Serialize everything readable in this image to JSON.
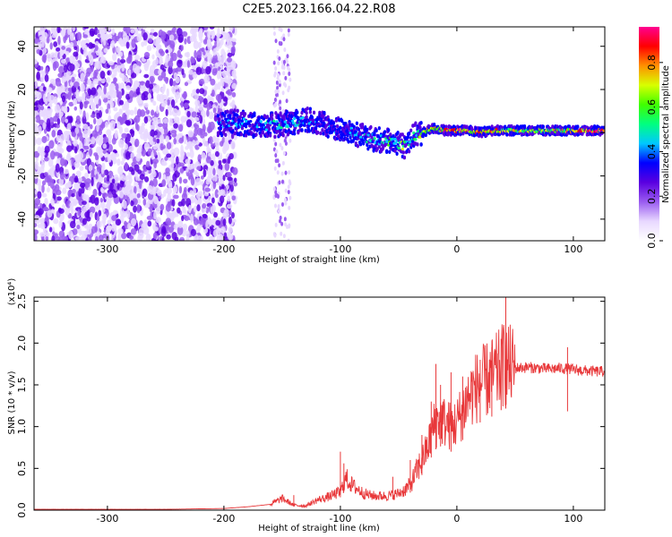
{
  "title": "C2E5.2023.166.04.22.R08",
  "colors": {
    "snr_line": "#e8383a",
    "colormap": [
      "#ffffff",
      "#e8d8ff",
      "#9a5cf0",
      "#5a00e0",
      "#0000ff",
      "#00c8ff",
      "#00ff80",
      "#40ff00",
      "#d8ff00",
      "#ff9000",
      "#ff0000",
      "#ff0090"
    ]
  },
  "chart_data": [
    {
      "type": "heatmap",
      "name": "spectrogram",
      "xlabel": "Height of straight line (km)",
      "ylabel": "Frequency (Hz)",
      "xlim": [
        -363,
        127
      ],
      "ylim": [
        -50,
        49
      ],
      "xticks": [
        -300,
        -200,
        -100,
        0,
        100
      ],
      "xticklabels": [
        "-300",
        "-200",
        "-100",
        "0",
        "100"
      ],
      "yticks": [
        40,
        20,
        0,
        -20,
        -40
      ],
      "yticklabels": [
        "40",
        "20",
        "0",
        "-20",
        "-40"
      ],
      "colorbar": {
        "label": "Normalized spectral amplitude",
        "range": [
          0,
          0.96
        ],
        "ticks": [
          0.0,
          0.2,
          0.4,
          0.6,
          0.8
        ],
        "ticklabels": [
          "0.0",
          "0.2",
          "0.4",
          "0.6",
          "0.8"
        ]
      },
      "ridge": {
        "x": [
          -205,
          -190,
          -170,
          -150,
          -140,
          -130,
          -120,
          -110,
          -100,
          -90,
          -80,
          -70,
          -60,
          -50,
          -45,
          -40,
          -35,
          -30,
          -25,
          -20,
          -10,
          0,
          10,
          20,
          30,
          40,
          60,
          80,
          100,
          127
        ],
        "freq": [
          4,
          5,
          3,
          4,
          5,
          6,
          5,
          3,
          1,
          0,
          -2,
          -3,
          -4,
          -5,
          -6,
          -3,
          -1,
          0,
          1,
          2,
          1,
          1,
          1,
          0,
          1,
          1,
          1,
          1,
          1,
          1
        ],
        "amplitude": [
          0.35,
          0.4,
          0.38,
          0.45,
          0.42,
          0.4,
          0.38,
          0.35,
          0.35,
          0.4,
          0.42,
          0.45,
          0.5,
          0.55,
          0.6,
          0.5,
          0.55,
          0.6,
          0.65,
          0.7,
          0.8,
          0.85,
          0.82,
          0.8,
          0.75,
          0.7,
          0.65,
          0.65,
          0.68,
          0.95
        ]
      },
      "noise_region_x": [
        -363,
        -200
      ]
    },
    {
      "type": "line",
      "name": "snr",
      "xlabel": "Height of straight line (km)",
      "ylabel": "SNR (10 * v/v)",
      "y_multiplier": "(x10⁴)",
      "xlim": [
        -363,
        127
      ],
      "ylim": [
        0,
        2.55
      ],
      "xticks": [
        -300,
        -200,
        -100,
        0,
        100
      ],
      "xticklabels": [
        "-300",
        "-200",
        "-100",
        "0",
        "100"
      ],
      "yticks": [
        0.0,
        0.5,
        1.0,
        1.5,
        2.0,
        2.5
      ],
      "yticklabels": [
        "0.0",
        "0.5",
        "1.0",
        "1.5",
        "2.0",
        "2.5"
      ],
      "series": [
        {
          "x": [
            -363,
            -300,
            -250,
            -200,
            -180,
            -160,
            -150,
            -140,
            -130,
            -120,
            -110,
            -100,
            -95,
            -90,
            -85,
            -80,
            -75,
            -70,
            -60,
            -50,
            -45,
            -40,
            -35,
            -30,
            -25,
            -20,
            -15,
            -10,
            -5,
            0,
            5,
            10,
            15,
            20,
            25,
            30,
            35,
            40,
            45,
            50,
            60,
            70,
            80,
            90,
            100,
            110,
            120,
            127
          ],
          "y": [
            0.01,
            0.01,
            0.01,
            0.02,
            0.04,
            0.07,
            0.14,
            0.06,
            0.05,
            0.12,
            0.16,
            0.22,
            0.38,
            0.3,
            0.25,
            0.2,
            0.18,
            0.17,
            0.17,
            0.2,
            0.24,
            0.3,
            0.45,
            0.6,
            0.75,
            1.0,
            1.1,
            1.05,
            1.0,
            1.05,
            1.2,
            1.35,
            1.45,
            1.5,
            1.55,
            1.6,
            1.65,
            1.75,
            1.72,
            1.7,
            1.71,
            1.7,
            1.69,
            1.7,
            1.68,
            1.67,
            1.66,
            1.66
          ]
        }
      ],
      "spikes": [
        {
          "x": -140,
          "y": 0.18
        },
        {
          "x": -100,
          "y": 0.7
        },
        {
          "x": -97,
          "y": 0.56
        },
        {
          "x": -55,
          "y": 0.4
        },
        {
          "x": -40,
          "y": 0.6
        },
        {
          "x": -30,
          "y": 0.9
        },
        {
          "x": -22,
          "y": 1.3
        },
        {
          "x": -18,
          "y": 1.75
        },
        {
          "x": -14,
          "y": 1.5
        },
        {
          "x": -5,
          "y": 1.65
        },
        {
          "x": 5,
          "y": 1.6
        },
        {
          "x": 20,
          "y": 1.8
        },
        {
          "x": 30,
          "y": 1.95
        },
        {
          "x": 38,
          "y": 2.05
        },
        {
          "x": 42,
          "y": 2.55
        },
        {
          "x": 95,
          "y": 1.95
        }
      ]
    }
  ]
}
